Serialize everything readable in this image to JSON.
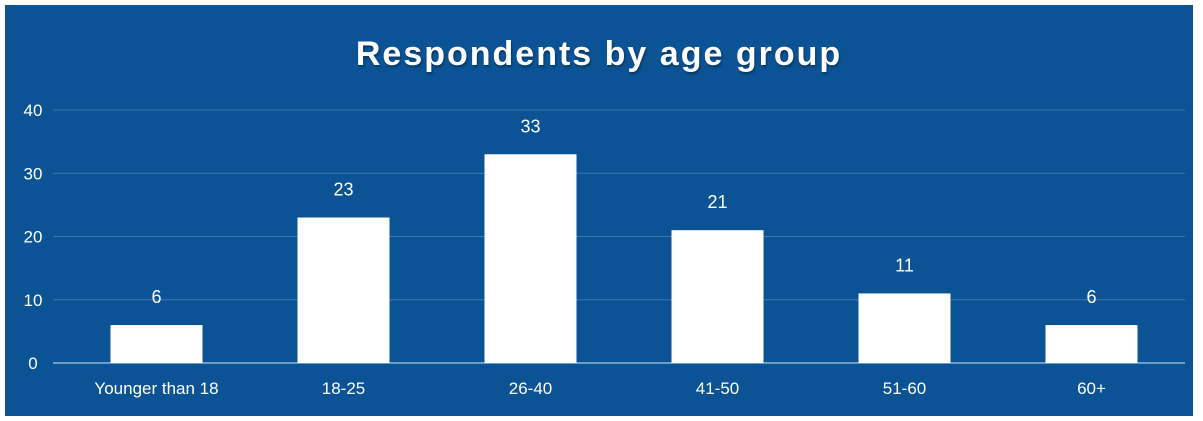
{
  "chart_data": {
    "type": "bar",
    "title": "Respondents by age group",
    "categories": [
      "Younger than 18",
      "18-25",
      "26-40",
      "41-50",
      "51-60",
      "60+"
    ],
    "values": [
      6,
      23,
      33,
      21,
      11,
      6
    ],
    "yticks": [
      0,
      10,
      20,
      30,
      40
    ],
    "ylim": [
      0,
      40
    ],
    "xlabel": "",
    "ylabel": "",
    "grid": true,
    "legend": "none",
    "colors": {
      "background": "#0b5394",
      "bar": "#ffffff",
      "gridline": "#3a78b4",
      "axis_text": "#ffffff"
    }
  }
}
